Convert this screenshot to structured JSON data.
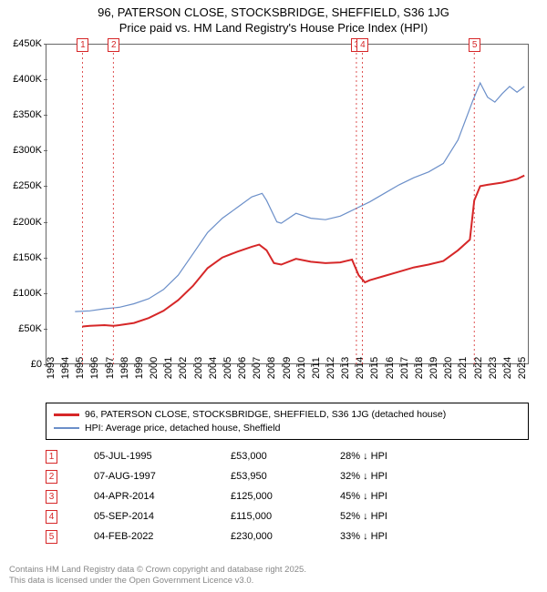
{
  "title": {
    "line1": "96, PATERSON CLOSE, STOCKSBRIDGE, SHEFFIELD, S36 1JG",
    "line2": "Price paid vs. HM Land Registry's House Price Index (HPI)"
  },
  "chart": {
    "type": "line",
    "background_color": "#ffffff",
    "axis_color": "#666666",
    "xlim": [
      1993,
      2025.8
    ],
    "ylim": [
      0,
      450000
    ],
    "y_ticks": [
      {
        "v": 0,
        "label": "£0"
      },
      {
        "v": 50000,
        "label": "£50K"
      },
      {
        "v": 100000,
        "label": "£100K"
      },
      {
        "v": 150000,
        "label": "£150K"
      },
      {
        "v": 200000,
        "label": "£200K"
      },
      {
        "v": 250000,
        "label": "£250K"
      },
      {
        "v": 300000,
        "label": "£300K"
      },
      {
        "v": 350000,
        "label": "£350K"
      },
      {
        "v": 400000,
        "label": "£400K"
      },
      {
        "v": 450000,
        "label": "£450K"
      }
    ],
    "x_ticks": [
      1993,
      1994,
      1995,
      1996,
      1997,
      1998,
      1999,
      2000,
      2001,
      2002,
      2003,
      2004,
      2005,
      2006,
      2007,
      2008,
      2009,
      2010,
      2011,
      2012,
      2013,
      2014,
      2015,
      2016,
      2017,
      2018,
      2019,
      2020,
      2021,
      2022,
      2023,
      2024,
      2025
    ],
    "series": [
      {
        "id": "property",
        "color": "#d62728",
        "line_width": 2.0,
        "label": "96, PATERSON CLOSE, STOCKSBRIDGE, SHEFFIELD, S36 1JG (detached house)",
        "points": [
          [
            1995.5,
            53000
          ],
          [
            1996,
            54000
          ],
          [
            1997,
            55000
          ],
          [
            1997.6,
            53950
          ],
          [
            1998,
            55000
          ],
          [
            1999,
            58000
          ],
          [
            2000,
            65000
          ],
          [
            2001,
            75000
          ],
          [
            2002,
            90000
          ],
          [
            2003,
            110000
          ],
          [
            2004,
            135000
          ],
          [
            2005,
            150000
          ],
          [
            2006,
            158000
          ],
          [
            2007,
            165000
          ],
          [
            2007.5,
            168000
          ],
          [
            2008,
            160000
          ],
          [
            2008.5,
            142000
          ],
          [
            2009,
            140000
          ],
          [
            2010,
            148000
          ],
          [
            2011,
            144000
          ],
          [
            2012,
            142000
          ],
          [
            2013,
            143000
          ],
          [
            2013.8,
            147000
          ],
          [
            2014.25,
            125000
          ],
          [
            2014.68,
            115000
          ],
          [
            2015,
            118000
          ],
          [
            2016,
            124000
          ],
          [
            2017,
            130000
          ],
          [
            2018,
            136000
          ],
          [
            2019,
            140000
          ],
          [
            2020,
            145000
          ],
          [
            2021,
            160000
          ],
          [
            2021.8,
            175000
          ],
          [
            2022.1,
            230000
          ],
          [
            2022.5,
            250000
          ],
          [
            2023,
            252000
          ],
          [
            2024,
            255000
          ],
          [
            2025,
            260000
          ],
          [
            2025.5,
            265000
          ]
        ]
      },
      {
        "id": "hpi",
        "color": "#6b8fc9",
        "line_width": 1.2,
        "label": "HPI: Average price, detached house, Sheffield",
        "points": [
          [
            1995,
            74000
          ],
          [
            1996,
            75000
          ],
          [
            1997,
            78000
          ],
          [
            1998,
            80000
          ],
          [
            1999,
            85000
          ],
          [
            2000,
            92000
          ],
          [
            2001,
            105000
          ],
          [
            2002,
            125000
          ],
          [
            2003,
            155000
          ],
          [
            2004,
            185000
          ],
          [
            2005,
            205000
          ],
          [
            2006,
            220000
          ],
          [
            2007,
            235000
          ],
          [
            2007.7,
            240000
          ],
          [
            2008,
            230000
          ],
          [
            2008.7,
            200000
          ],
          [
            2009,
            198000
          ],
          [
            2010,
            212000
          ],
          [
            2011,
            205000
          ],
          [
            2012,
            203000
          ],
          [
            2013,
            208000
          ],
          [
            2014,
            218000
          ],
          [
            2015,
            228000
          ],
          [
            2016,
            240000
          ],
          [
            2017,
            252000
          ],
          [
            2018,
            262000
          ],
          [
            2019,
            270000
          ],
          [
            2020,
            282000
          ],
          [
            2021,
            315000
          ],
          [
            2022,
            370000
          ],
          [
            2022.5,
            395000
          ],
          [
            2023,
            375000
          ],
          [
            2023.5,
            368000
          ],
          [
            2024,
            380000
          ],
          [
            2024.5,
            390000
          ],
          [
            2025,
            382000
          ],
          [
            2025.5,
            390000
          ]
        ]
      }
    ],
    "markers_color": "#d62728",
    "markers": [
      {
        "n": "1",
        "year": 1995.5,
        "top_offset": -6
      },
      {
        "n": "2",
        "year": 1997.6,
        "top_offset": -6
      },
      {
        "n": "3",
        "year": 2014.1,
        "top_offset": -6
      },
      {
        "n": "4",
        "year": 2014.5,
        "top_offset": -6
      },
      {
        "n": "5",
        "year": 2022.1,
        "top_offset": -6
      }
    ]
  },
  "legend": {
    "items": [
      {
        "color": "#d62728",
        "width": 2.5,
        "label_path": "chart.series.0.label"
      },
      {
        "color": "#6b8fc9",
        "width": 1.5,
        "label_path": "chart.series.1.label"
      }
    ]
  },
  "table": {
    "rows": [
      {
        "n": "1",
        "date": "05-JUL-1995",
        "price": "£53,000",
        "pct": "28% ↓ HPI"
      },
      {
        "n": "2",
        "date": "07-AUG-1997",
        "price": "£53,950",
        "pct": "32% ↓ HPI"
      },
      {
        "n": "3",
        "date": "04-APR-2014",
        "price": "£125,000",
        "pct": "45% ↓ HPI"
      },
      {
        "n": "4",
        "date": "05-SEP-2014",
        "price": "£115,000",
        "pct": "52% ↓ HPI"
      },
      {
        "n": "5",
        "date": "04-FEB-2022",
        "price": "£230,000",
        "pct": "33% ↓ HPI"
      }
    ]
  },
  "footer": {
    "line1": "Contains HM Land Registry data © Crown copyright and database right 2025.",
    "line2": "This data is licensed under the Open Government Licence v3.0."
  }
}
